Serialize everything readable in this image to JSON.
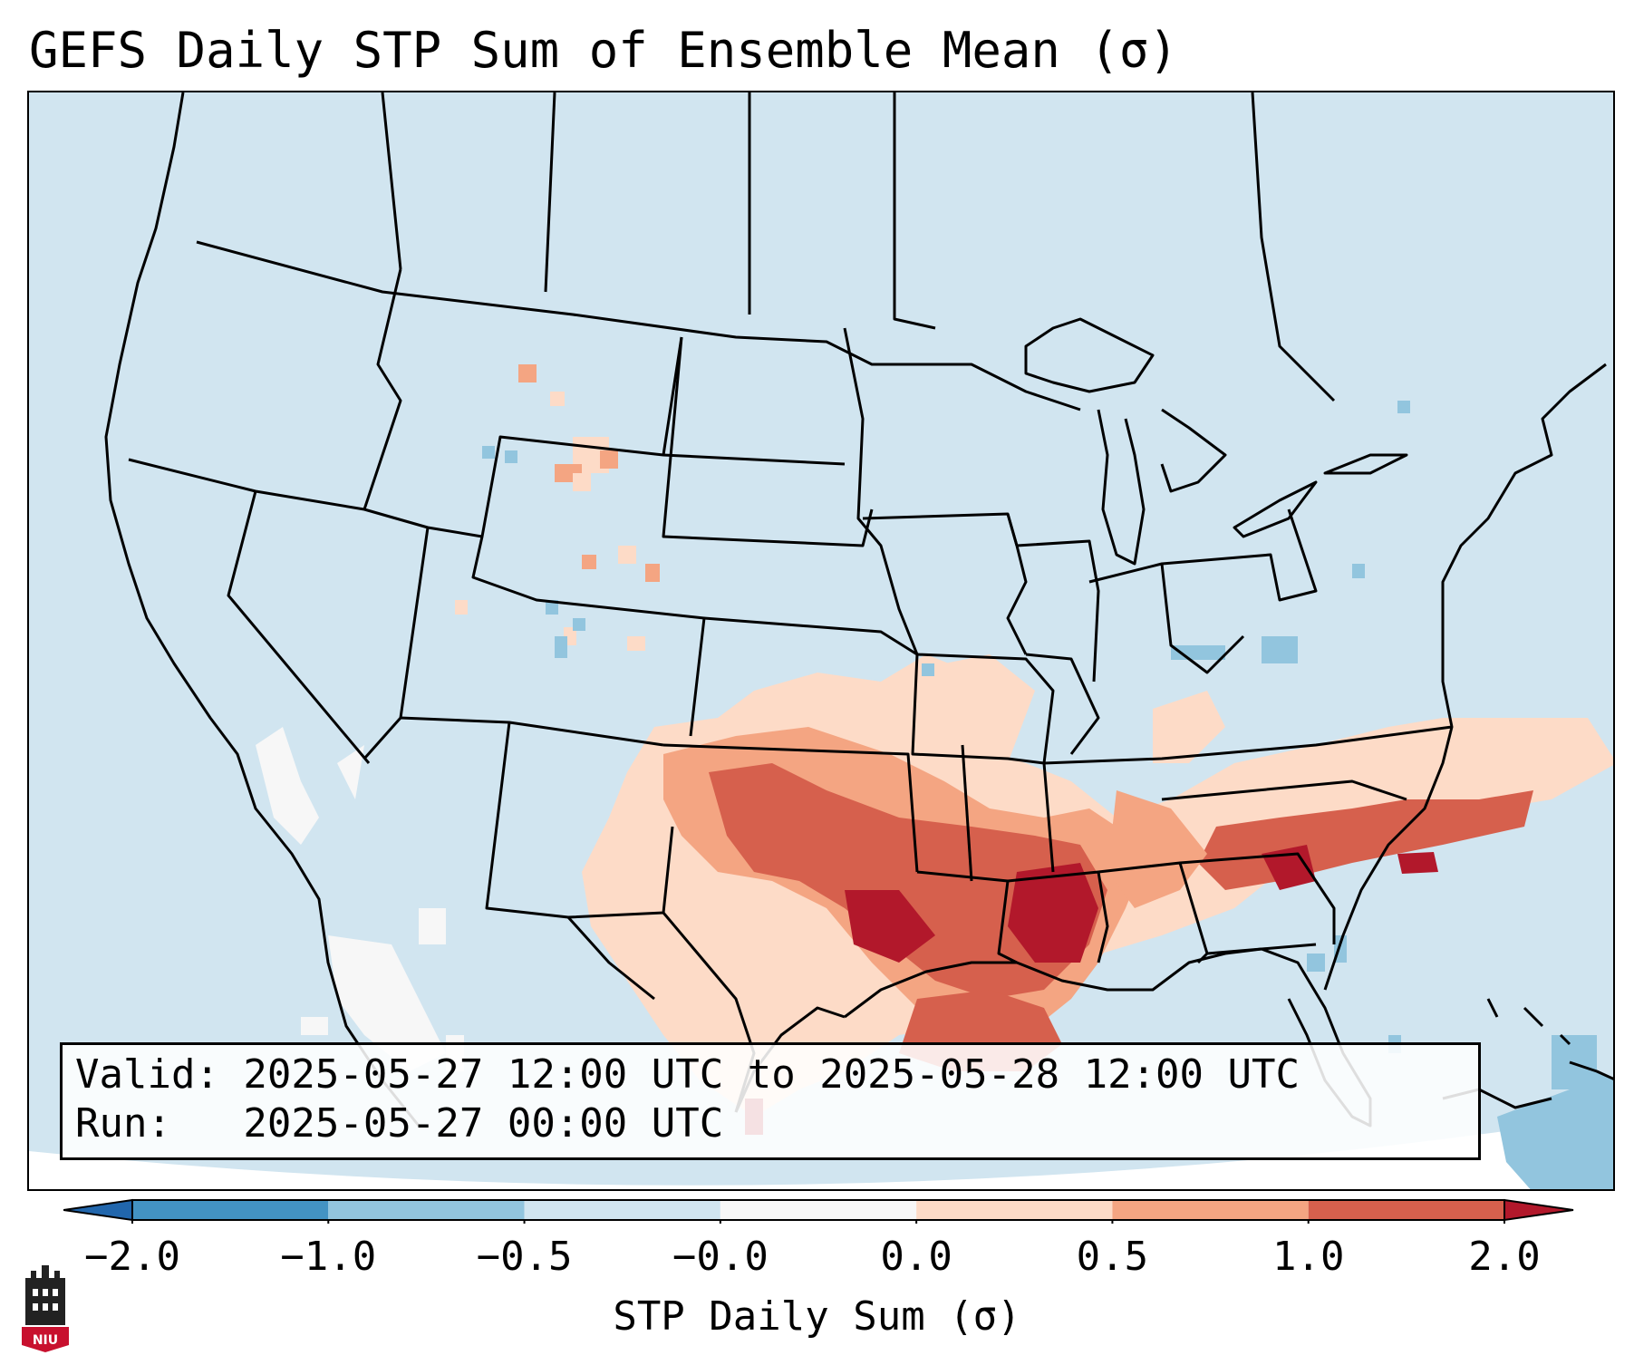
{
  "title": "GEFS Daily STP Sum of Ensemble Mean (σ)",
  "info": {
    "valid_line": "Valid: 2025-05-27 12:00 UTC to 2025-05-28 12:00 UTC",
    "run_line": "Run:   2025-05-27 00:00 UTC"
  },
  "colorbar": {
    "label": "STP Daily Sum (σ)",
    "ticks": [
      "−2.0",
      "−1.0",
      "−0.5",
      "−0.0",
      "0.0",
      "0.5",
      "1.0",
      "2.0"
    ],
    "bin_colors": [
      "#4393c3",
      "#92c5de",
      "#d1e5f0",
      "#f7f7f7",
      "#fddbc7",
      "#f4a582",
      "#d6604d"
    ],
    "extend_low_color": "#2166ac",
    "extend_high_color": "#b2182b"
  },
  "map": {
    "background_color": "#d1e5f0",
    "features": [
      "US state boundaries",
      "Canada provinces",
      "Mexico states",
      "coastlines",
      "Caribbean islands"
    ]
  },
  "logo": {
    "text": "NIU"
  }
}
